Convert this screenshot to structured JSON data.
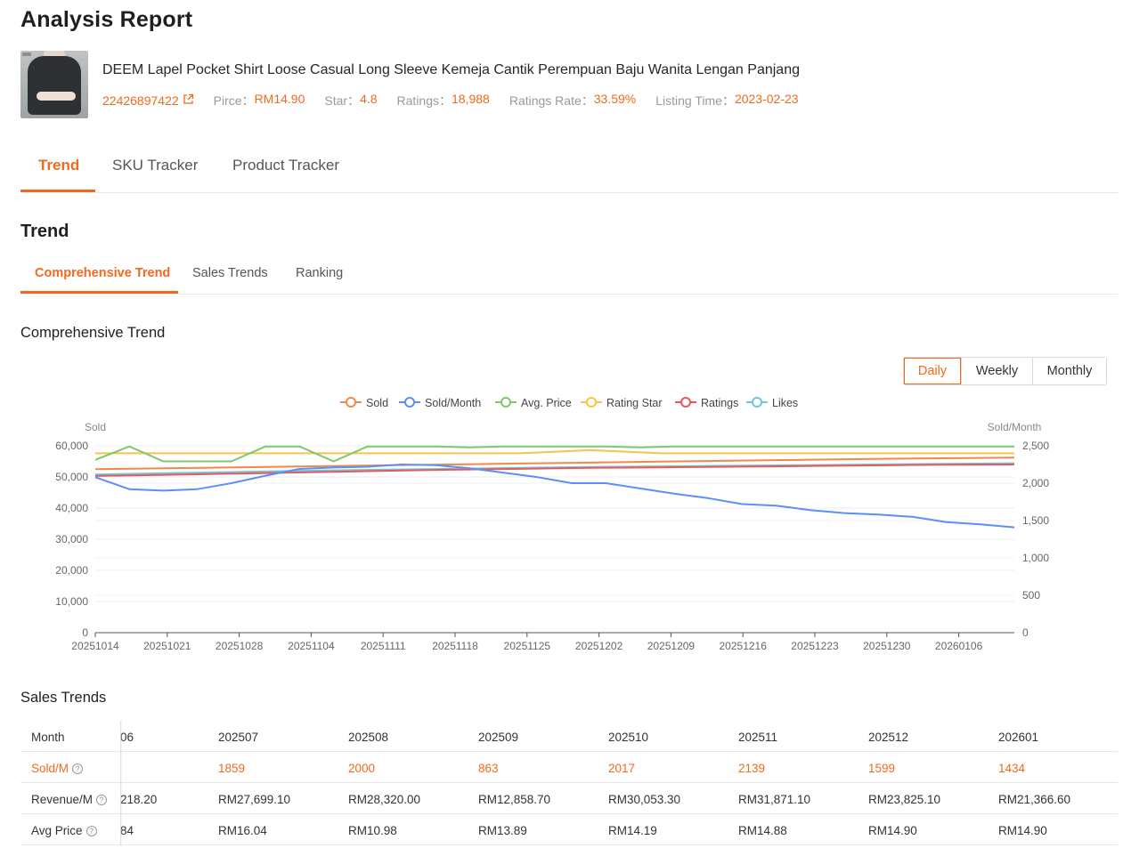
{
  "page": {
    "title": "Analysis Report"
  },
  "product": {
    "image_icon": "product-photo",
    "name": "DEEM Lapel Pocket Shirt Loose Casual Long Sleeve Kemeja Cantik Perempuan Baju Wanita Lengan Panjang",
    "id": "22426897422",
    "link_icon": "external-link-icon",
    "meta": [
      {
        "key": "Pirce：",
        "value": "RM14.90"
      },
      {
        "key": "Star：",
        "value": "4.8"
      },
      {
        "key": "Ratings：",
        "value": "18,988"
      },
      {
        "key": "Ratings Rate：",
        "value": "33.59%"
      },
      {
        "key": "Listing Time：",
        "value": "2023-02-23"
      }
    ]
  },
  "main_tabs": [
    {
      "label": "Trend",
      "active": true
    },
    {
      "label": "SKU Tracker",
      "active": false
    },
    {
      "label": "Product Tracker",
      "active": false
    }
  ],
  "trend_section": {
    "title": "Trend"
  },
  "sub_tabs": [
    {
      "label": "Comprehensive Trend",
      "active": true
    },
    {
      "label": "Sales Trends",
      "active": false
    },
    {
      "label": "Ranking",
      "active": false
    }
  ],
  "chart_section": {
    "title": "Comprehensive Trend"
  },
  "period_buttons": [
    {
      "label": "Daily",
      "active": true
    },
    {
      "label": "Weekly",
      "active": false
    },
    {
      "label": "Monthly",
      "active": false
    }
  ],
  "colors": {
    "accent": "#f06a1d",
    "sold": "#f4874b",
    "sold_month": "#5b8ff9",
    "avg_price": "#7ec86b",
    "rating_star": "#f7c34a",
    "ratings": "#e8595b",
    "likes": "#72c6dc"
  },
  "chart_data": {
    "type": "line",
    "title": "",
    "legend_position": "top-center",
    "grid": true,
    "legend": [
      "Sold",
      "Sold/Month",
      "Avg. Price",
      "Rating Star",
      "Ratings",
      "Likes"
    ],
    "y_left": {
      "label": "Sold",
      "ticks": [
        "0",
        "10,000",
        "20,000",
        "30,000",
        "40,000",
        "50,000",
        "60,000"
      ],
      "range": [
        0,
        60000
      ]
    },
    "y_right": {
      "label": "Sold/Month",
      "ticks": [
        "0",
        "500",
        "1,000",
        "1,500",
        "2,000",
        "2,500"
      ],
      "range": [
        0,
        2500
      ]
    },
    "x_ticks": [
      "20251014",
      "20251021",
      "20251028",
      "20251104",
      "20251111",
      "20251118",
      "20251125",
      "20251202",
      "20251209",
      "20251216",
      "20251223",
      "20251230",
      "20260106"
    ],
    "series": [
      {
        "name": "Sold",
        "axis": "left",
        "color": "#f4874b",
        "values": [
          52500,
          52800,
          53100,
          53400,
          53700,
          54000,
          54300,
          54600,
          54900,
          55200,
          55500,
          55800,
          56000,
          56200
        ]
      },
      {
        "name": "Sold/Month",
        "axis": "right",
        "color": "#5b8ff9",
        "values": [
          2080,
          1920,
          1900,
          1920,
          2000,
          2100,
          2190,
          2210,
          2220,
          2250,
          2240,
          2200,
          2140,
          2080,
          2000,
          2000,
          1930,
          1860,
          1800,
          1720,
          1700,
          1640,
          1600,
          1580,
          1550,
          1480,
          1450,
          1410
        ]
      },
      {
        "name": "Avg. Price",
        "axis": "left",
        "color": "#7ec86b",
        "values": [
          55500,
          59800,
          55000,
          55000,
          55000,
          59800,
          59800,
          55000,
          59800,
          59800,
          59800,
          59500,
          59800,
          59800,
          59800,
          59800,
          59500,
          59800,
          59800,
          59800,
          59800,
          59800,
          59800,
          59800,
          59800,
          59800,
          59800,
          59800
        ]
      },
      {
        "name": "Rating Star",
        "axis": "left",
        "color": "#f7c34a",
        "values": [
          57600,
          57600,
          57600,
          57600,
          57600,
          57600,
          57600,
          58600,
          57600,
          57600,
          57600,
          57600,
          57600,
          57600
        ]
      },
      {
        "name": "Ratings",
        "axis": "left",
        "color": "#e8595b",
        "values": [
          50300,
          50700,
          51100,
          51500,
          51900,
          52300,
          52600,
          52900,
          53100,
          53300,
          53500,
          53700,
          53900,
          54000
        ]
      },
      {
        "name": "Likes",
        "axis": "left",
        "color": "#72c6dc",
        "values": [
          50800,
          51200,
          51600,
          52000,
          52300,
          52600,
          52900,
          53200,
          53400,
          53600,
          53800,
          54000,
          54200,
          54400
        ]
      }
    ]
  },
  "sales_trends": {
    "title": "Sales Trends",
    "header_label": "Month",
    "partial_col": {
      "month": "06",
      "revenue": "218.20",
      "avg_price": "84"
    },
    "months": [
      "202507",
      "202508",
      "202509",
      "202510",
      "202511",
      "202512",
      "202601"
    ],
    "rows": [
      {
        "label": "Sold/M",
        "help_icon": "question-circle-icon",
        "values": [
          "1859",
          "2000",
          "863",
          "2017",
          "2139",
          "1599",
          "1434"
        ]
      },
      {
        "label": "Revenue/M",
        "help_icon": "question-circle-icon",
        "values": [
          "RM27,699.10",
          "RM28,320.00",
          "RM12,858.70",
          "RM30,053.30",
          "RM31,871.10",
          "RM23,825.10",
          "RM21,366.60"
        ]
      },
      {
        "label": "Avg Price",
        "help_icon": "question-circle-icon",
        "values": [
          "RM16.04",
          "RM10.98",
          "RM13.89",
          "RM14.19",
          "RM14.88",
          "RM14.90",
          "RM14.90"
        ]
      }
    ]
  }
}
